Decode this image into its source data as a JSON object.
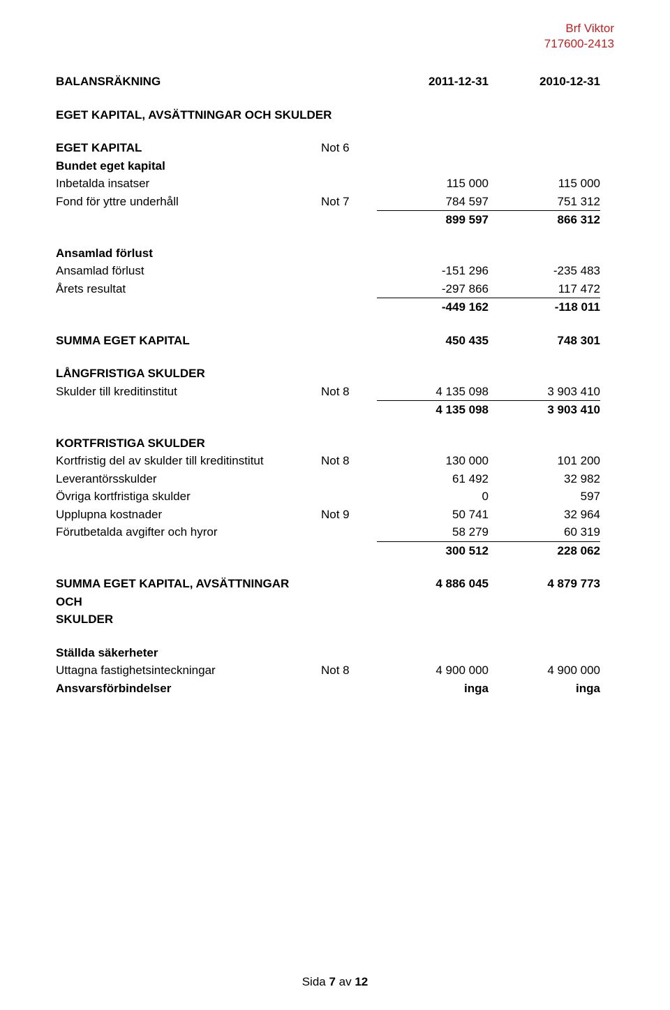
{
  "header": {
    "org_name": "Brf Viktor",
    "org_number": "717600-2413"
  },
  "title_row": {
    "title": "BALANSRÄKNING",
    "col1": "2011-12-31",
    "col2": "2010-12-31"
  },
  "section_ek_heading": "EGET KAPITAL, AVSÄTTNINGAR OCH SKULDER",
  "ek_label": "EGET KAPITAL",
  "ek_note": "Not 6",
  "bundet_label": "Bundet eget kapital",
  "inbetalda": {
    "label": "Inbetalda insatser",
    "c1": "115 000",
    "c2": "115 000"
  },
  "fond": {
    "label": "Fond för yttre underhåll",
    "note": "Not 7",
    "c1": "784 597",
    "c2": "751 312"
  },
  "bundet_sum": {
    "c1": "899 597",
    "c2": "866 312"
  },
  "ansamlad_heading": "Ansamlad förlust",
  "ansamlad_forlust": {
    "label": "Ansamlad förlust",
    "c1": "-151 296",
    "c2": "-235 483"
  },
  "arets_resultat": {
    "label": "Årets resultat",
    "c1": "-297 866",
    "c2": "117 472"
  },
  "ansamlad_sum": {
    "c1": "-449 162",
    "c2": "-118 011"
  },
  "summa_ek": {
    "label": "SUMMA EGET KAPITAL",
    "c1": "450 435",
    "c2": "748 301"
  },
  "lang_heading": "LÅNGFRISTIGA SKULDER",
  "skulder_kredit": {
    "label": "Skulder till kreditinstitut",
    "note": "Not 8",
    "c1": "4 135 098",
    "c2": "3 903 410"
  },
  "lang_sum": {
    "c1": "4 135 098",
    "c2": "3 903 410"
  },
  "kort_heading": "KORTFRISTIGA SKULDER",
  "kort_kredit": {
    "label": "Kortfristig del av skulder till kreditinstitut",
    "note": "Not 8",
    "c1": "130 000",
    "c2": "101 200"
  },
  "leverantor": {
    "label": "Leverantörsskulder",
    "c1": "61 492",
    "c2": "32 982"
  },
  "ovriga": {
    "label": "Övriga kortfristiga skulder",
    "c1": "0",
    "c2": "597"
  },
  "upplupna": {
    "label": "Upplupna kostnader",
    "note": "Not 9",
    "c1": "50 741",
    "c2": "32 964"
  },
  "forutbetalda": {
    "label": "Förutbetalda avgifter och hyror",
    "c1": "58 279",
    "c2": "60 319"
  },
  "kort_sum": {
    "c1": "300 512",
    "c2": "228 062"
  },
  "summa_all": {
    "label1": "SUMMA EGET KAPITAL, AVSÄTTNINGAR OCH",
    "label2": "SKULDER",
    "c1": "4 886 045",
    "c2": "4 879 773"
  },
  "stallda_heading": "Ställda säkerheter",
  "uttagna": {
    "label": "Uttagna fastighetsinteckningar",
    "note": "Not 8",
    "c1": "4 900 000",
    "c2": "4 900 000"
  },
  "ansvars": {
    "label": "Ansvarsförbindelser",
    "c1": "inga",
    "c2": "inga"
  },
  "footer": {
    "pre": "Sida ",
    "page": "7",
    "post": " av ",
    "total": "12"
  }
}
